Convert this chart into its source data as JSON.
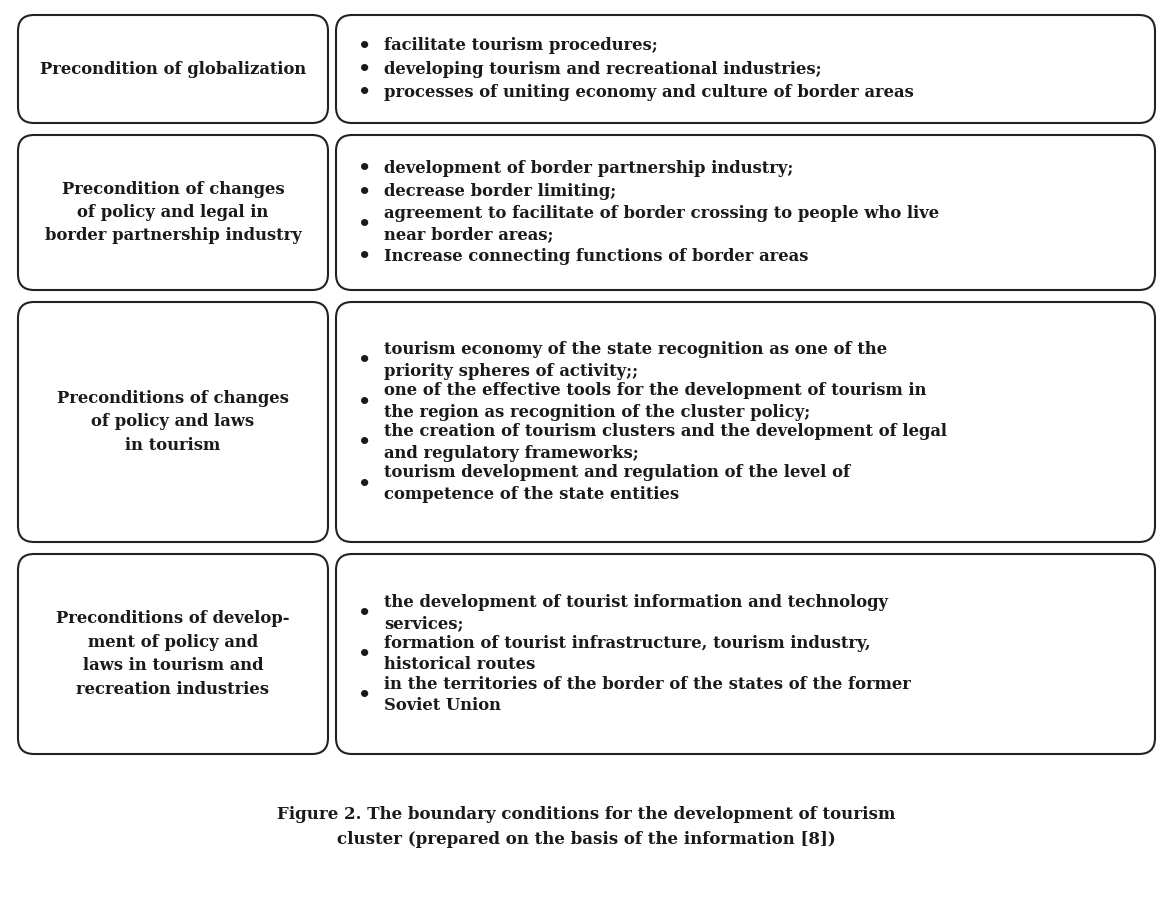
{
  "title": "Figure 2. The boundary conditions for the development of tourism\ncluster (prepared on the basis of the information [8])",
  "title_fontsize": 12,
  "text_color": "#1a1a1a",
  "background_color": "#ffffff",
  "border_color": "#222222",
  "rows": [
    {
      "left_text": "Precondition of globalization",
      "right_bullets": [
        "facilitate tourism procedures;",
        "developing tourism and recreational industries;",
        "processes of uniting economy and culture of border areas"
      ]
    },
    {
      "left_text": "Precondition of changes\nof policy and legal in\nborder partnership industry",
      "right_bullets": [
        "development of border partnership industry;",
        "decrease border limiting;",
        "agreement to facilitate of border crossing to people who live\nnear border areas;",
        "Increase connecting functions of border areas"
      ]
    },
    {
      "left_text": "Preconditions of changes\nof policy and laws\nin tourism",
      "right_bullets": [
        "tourism economy of the state recognition as one of the\npriority spheres of activity;;",
        "one of the effective tools for the development of tourism in\nthe region as recognition of the cluster policy;",
        "the creation of tourism clusters and the development of legal\nand regulatory frameworks;",
        "tourism development and regulation of the level of\ncompetence of the state entities"
      ]
    },
    {
      "left_text": "Preconditions of develop-\nment of policy and\nlaws in tourism and\nrecreation industries",
      "right_bullets": [
        "the development of tourist information and technology\nservices;",
        "formation of tourist infrastructure, tourism industry,\nhistorical routes",
        "in the territories of the border of the states of the former\nSoviet Union"
      ]
    }
  ],
  "font_size": 11.8,
  "bullet_char": "•"
}
